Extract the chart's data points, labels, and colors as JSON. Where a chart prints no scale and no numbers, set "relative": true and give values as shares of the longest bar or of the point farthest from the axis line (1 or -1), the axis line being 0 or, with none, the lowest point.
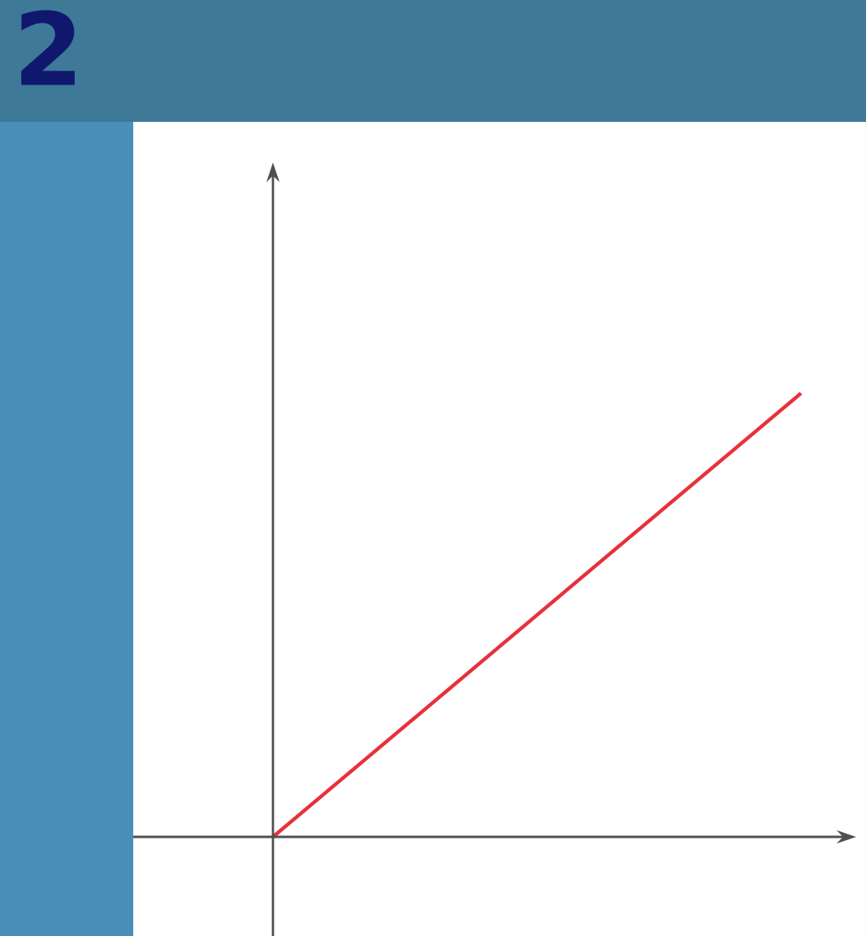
{
  "chart_data": {
    "type": "line",
    "title": "2",
    "relative": true,
    "categories": [
      null,
      null
    ],
    "series": [
      {
        "color": "#e8303c",
        "values": [
          0,
          1
        ]
      }
    ]
  }
}
